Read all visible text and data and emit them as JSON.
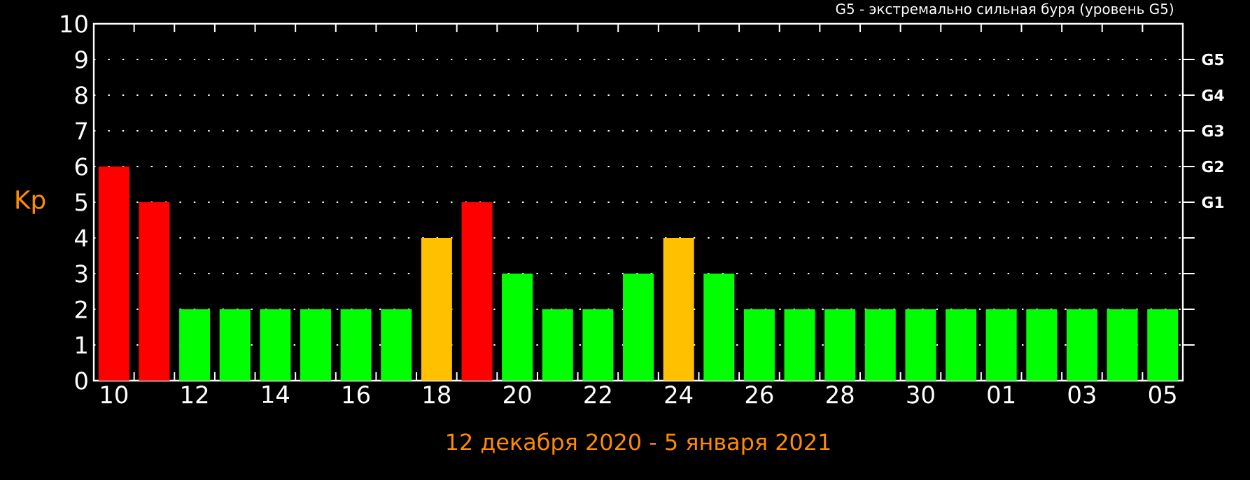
{
  "chart_data": {
    "type": "bar",
    "annotations": [
      "G5 - экстремально сильная буря (уровень G5)",
      "G1",
      "G2",
      "G3",
      "G4",
      "G5"
    ],
    "xlabel": "12 декабря 2020 - 5 января 2021",
    "ylabel": "Kp",
    "categories": [
      "10",
      null,
      "12",
      null,
      "14",
      null,
      "16",
      null,
      "18",
      null,
      "20",
      null,
      "22",
      null,
      "24",
      null,
      "26",
      null,
      "28",
      null,
      "30",
      null,
      "01",
      null,
      "03",
      null,
      "05"
    ],
    "values": [
      6,
      5,
      2,
      2,
      2,
      2,
      2,
      2,
      4,
      5,
      3,
      2,
      2,
      3,
      4,
      3,
      2,
      2,
      2,
      2,
      2,
      2,
      2,
      2,
      2,
      2,
      2
    ],
    "colors": [
      "#ff0000",
      "#ff0000",
      "#00ff00",
      "#00ff00",
      "#00ff00",
      "#00ff00",
      "#00ff00",
      "#00ff00",
      "#ffc000",
      "#ff0000",
      "#00ff00",
      "#00ff00",
      "#00ff00",
      "#00ff00",
      "#ffc000",
      "#00ff00",
      "#00ff00",
      "#00ff00",
      "#00ff00",
      "#00ff00",
      "#00ff00",
      "#00ff00",
      "#00ff00",
      "#00ff00",
      "#00ff00",
      "#00ff00",
      "#00ff00"
    ],
    "ylim": [
      0,
      10
    ],
    "yticks": [
      0,
      1,
      2,
      3,
      4,
      5,
      6,
      7,
      8,
      9,
      10
    ],
    "grid": "y"
  }
}
